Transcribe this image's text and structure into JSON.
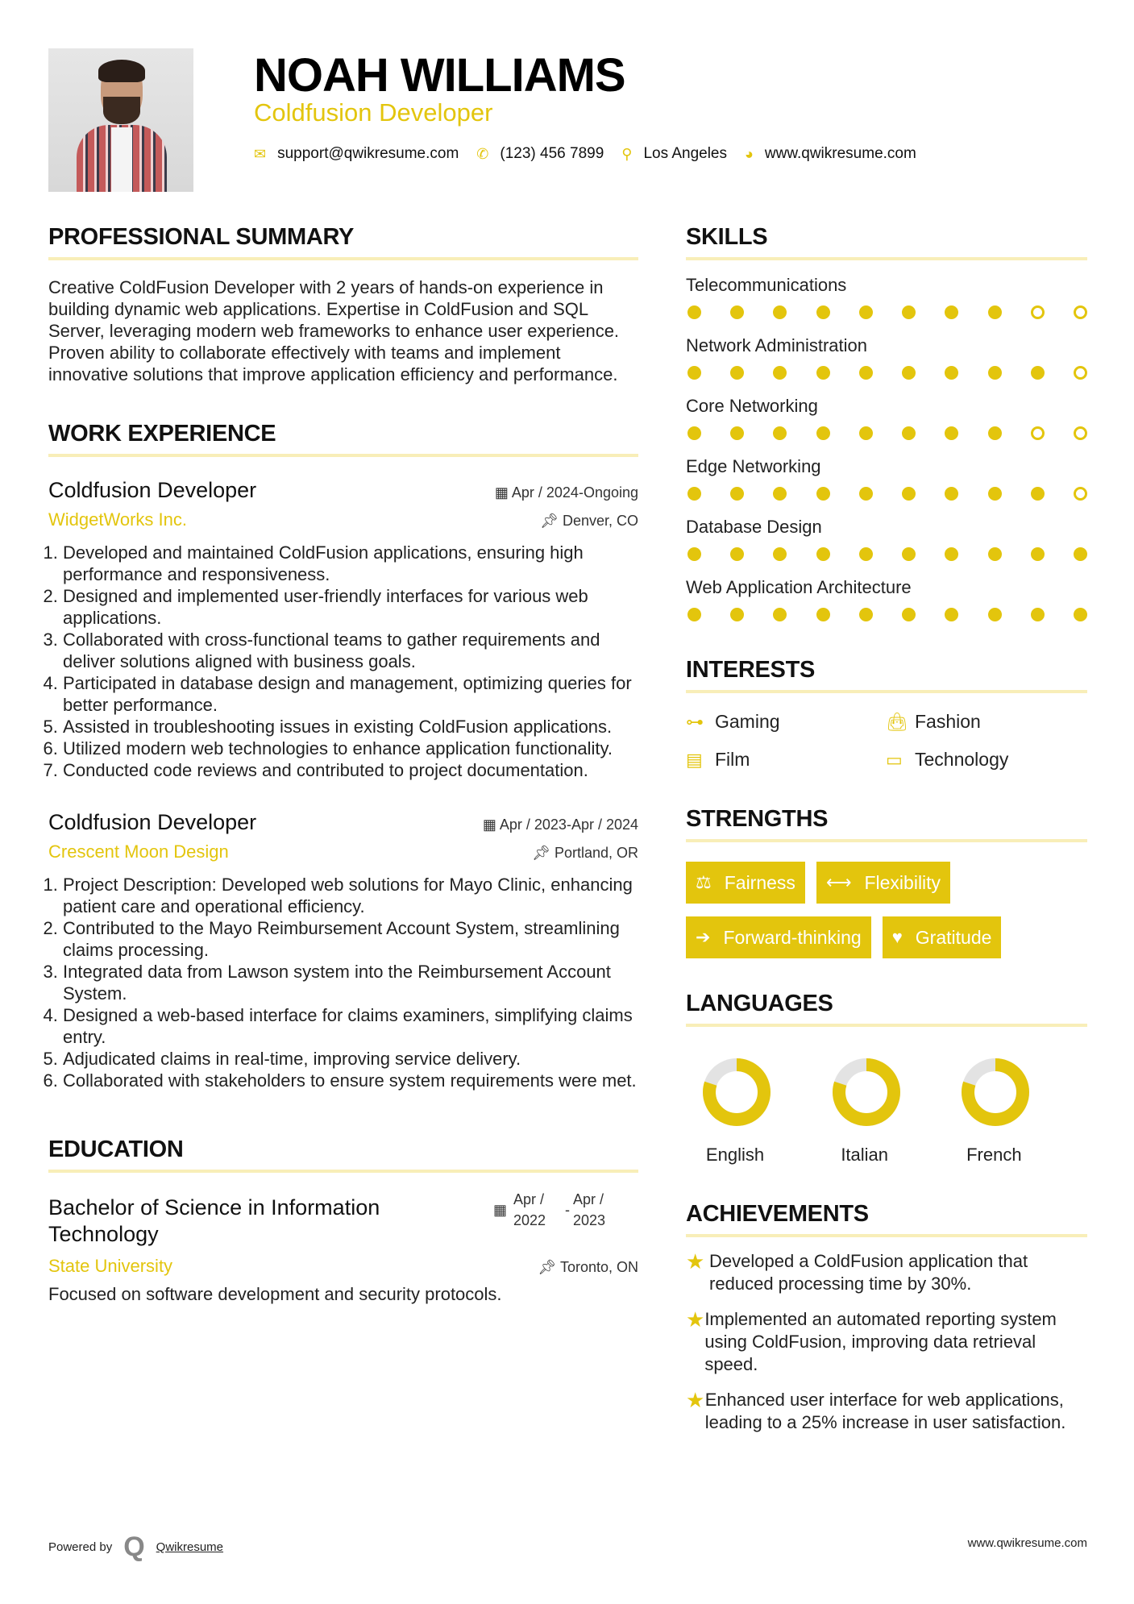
{
  "header": {
    "name": "NOAH WILLIAMS",
    "title": "Coldfusion Developer",
    "email": "support@qwikresume.com",
    "phone": "(123) 456 7899",
    "location": "Los Angeles",
    "website": "www.qwikresume.com"
  },
  "accent": "#e3c50d",
  "summary": {
    "heading": "PROFESSIONAL SUMMARY",
    "text": "Creative ColdFusion Developer with 2 years of hands-on experience in building dynamic web applications. Expertise in ColdFusion and SQL Server, leveraging modern web frameworks to enhance user experience. Proven ability to collaborate effectively with teams and implement innovative solutions that improve application efficiency and performance."
  },
  "work": {
    "heading": "WORK EXPERIENCE",
    "jobs": [
      {
        "title": "Coldfusion Developer",
        "date": "Apr / 2024-Ongoing",
        "company": "WidgetWorks Inc.",
        "location": "Denver, CO",
        "items": [
          "Developed and maintained ColdFusion applications, ensuring high performance and responsiveness.",
          "Designed and implemented user-friendly interfaces for various web applications.",
          "Collaborated with cross-functional teams to gather requirements and deliver solutions aligned with business goals.",
          "Participated in database design and management, optimizing queries for better performance.",
          "Assisted in troubleshooting issues in existing ColdFusion applications.",
          "Utilized modern web technologies to enhance application functionality.",
          "Conducted code reviews and contributed to project documentation."
        ]
      },
      {
        "title": "Coldfusion Developer",
        "date": "Apr / 2023-Apr / 2024",
        "company": "Crescent Moon Design",
        "location": "Portland, OR",
        "items": [
          "Project Description: Developed web solutions for Mayo Clinic, enhancing patient care and operational efficiency.",
          "Contributed to the Mayo Reimbursement Account System, streamlining claims processing.",
          "Integrated data from Lawson system into the Reimbursement Account System.",
          "Designed a web-based interface for claims examiners, simplifying claims entry.",
          "Adjudicated claims in real-time, improving service delivery.",
          "Collaborated with stakeholders to ensure system requirements were met."
        ]
      }
    ]
  },
  "education": {
    "heading": "EDUCATION",
    "degree": "Bachelor of Science in Information Technology",
    "start": "Apr / 2022",
    "end": "Apr / 2023",
    "school": "State University",
    "location": "Toronto, ON",
    "description": "Focused on software development and security protocols."
  },
  "skills": {
    "heading": "SKILLS",
    "max": 10,
    "items": [
      {
        "name": "Telecommunications",
        "level": 8
      },
      {
        "name": "Network Administration",
        "level": 9
      },
      {
        "name": "Core Networking",
        "level": 8
      },
      {
        "name": "Edge Networking",
        "level": 9
      },
      {
        "name": "Database Design",
        "level": 10
      },
      {
        "name": "Web Application Architecture",
        "level": 10
      }
    ]
  },
  "interests": {
    "heading": "INTERESTS",
    "items": [
      {
        "label": "Gaming",
        "icon": "gamepad-icon"
      },
      {
        "label": "Fashion",
        "icon": "shopping-bag-icon"
      },
      {
        "label": "Film",
        "icon": "film-icon"
      },
      {
        "label": "Technology",
        "icon": "laptop-icon"
      }
    ]
  },
  "strengths": {
    "heading": "STRENGTHS",
    "items": [
      {
        "label": "Fairness",
        "icon": "balance-scale-icon"
      },
      {
        "label": "Flexibility",
        "icon": "arrows-horizontal-icon"
      },
      {
        "label": "Forward-thinking",
        "icon": "arrow-right-icon"
      },
      {
        "label": "Gratitude",
        "icon": "heart-icon"
      }
    ]
  },
  "languages": {
    "heading": "LANGUAGES",
    "items": [
      {
        "name": "English",
        "level": 0.8
      },
      {
        "name": "Italian",
        "level": 0.8
      },
      {
        "name": "French",
        "level": 0.8
      }
    ]
  },
  "achievements": {
    "heading": "ACHIEVEMENTS",
    "items": [
      "Developed a ColdFusion application that reduced processing time by 30%.",
      "Implemented an automated reporting system using ColdFusion, improving data retrieval speed.",
      "Enhanced user interface for web applications, leading to a 25% increase in user satisfaction."
    ]
  },
  "footer": {
    "powered_by": "Powered by",
    "brand": "Qwikresume",
    "website": "www.qwikresume.com"
  }
}
